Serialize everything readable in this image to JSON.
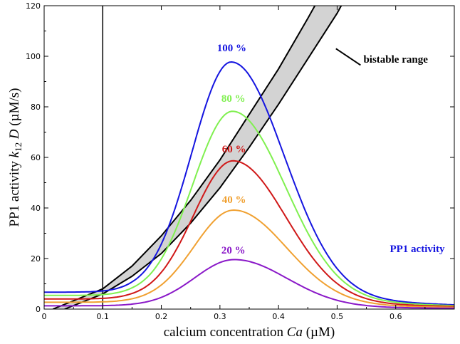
{
  "chart_data": {
    "type": "line",
    "xlabel": "calcium concentration  Ca (µM)",
    "ylabel": "PP1 activity  k12 D (µM/s)",
    "xlabel_parts": {
      "main": "calcium concentration  ",
      "italic": "Ca",
      "unit": " (µM)"
    },
    "ylabel_parts": {
      "main": "PP1 activity  ",
      "k": "k",
      "sub": "12",
      "d": " D",
      "unit": " (µM/s)"
    },
    "xlim": [
      0,
      0.7
    ],
    "ylim": [
      0,
      120
    ],
    "xticks": [
      0,
      0.1,
      0.2,
      0.3,
      0.4,
      0.5,
      0.6
    ],
    "xtick_labels": [
      "0",
      "0.1",
      "0.2",
      "0.3",
      "0.4",
      "0.5",
      "0.6"
    ],
    "yticks": [
      0,
      20,
      40,
      60,
      80,
      100,
      120
    ],
    "ytick_labels": [
      "0",
      "20",
      "40",
      "60",
      "80",
      "100",
      "120"
    ],
    "grid": false,
    "vertical_line_x": 0.1,
    "series": [
      {
        "name": "100 %",
        "color": "#1515e0",
        "peak": 99.3,
        "baseline": 6.7,
        "center": 0.32
      },
      {
        "name": "80 %",
        "color": "#80f050",
        "peak": 79.5,
        "baseline": 5.4,
        "center": 0.322
      },
      {
        "name": "60 %",
        "color": "#d01818",
        "peak": 59.6,
        "baseline": 4.0,
        "center": 0.323
      },
      {
        "name": "40 %",
        "color": "#f0a030",
        "peak": 39.8,
        "baseline": 2.7,
        "center": 0.324
      },
      {
        "name": "20 %",
        "color": "#8a18c8",
        "peak": 19.9,
        "baseline": 1.3,
        "center": 0.325
      }
    ],
    "bistable_range": {
      "label": "bistable range",
      "lower_boundary": [
        [
          0.035,
          0
        ],
        [
          0.1,
          6
        ],
        [
          0.15,
          13
        ],
        [
          0.2,
          22
        ],
        [
          0.25,
          34
        ],
        [
          0.3,
          48
        ],
        [
          0.35,
          64
        ],
        [
          0.4,
          81
        ],
        [
          0.45,
          99
        ],
        [
          0.5,
          117
        ],
        [
          0.507,
          120
        ]
      ],
      "upper_boundary": [
        [
          0.015,
          0
        ],
        [
          0.1,
          8
        ],
        [
          0.15,
          17
        ],
        [
          0.2,
          29
        ],
        [
          0.25,
          43
        ],
        [
          0.3,
          59
        ],
        [
          0.35,
          77
        ],
        [
          0.4,
          95
        ],
        [
          0.45,
          115
        ],
        [
          0.462,
          120
        ]
      ]
    },
    "annotations": [
      {
        "text": "100 %",
        "x": 0.32,
        "y": 102,
        "color": "#1515e0"
      },
      {
        "text": "80 %",
        "x": 0.323,
        "y": 82,
        "color": "#80f050"
      },
      {
        "text": "60 %",
        "x": 0.324,
        "y": 62,
        "color": "#d01818"
      },
      {
        "text": "40 %",
        "x": 0.324,
        "y": 42,
        "color": "#f0a030"
      },
      {
        "text": "20 %",
        "x": 0.323,
        "y": 22,
        "color": "#8a18c8"
      },
      {
        "text": "bistable range",
        "x": 0.545,
        "y": 97.5,
        "color": "#000000"
      },
      {
        "text": "PP1 activity",
        "x": 0.59,
        "y": 22.5,
        "color": "#1515e0"
      }
    ]
  }
}
